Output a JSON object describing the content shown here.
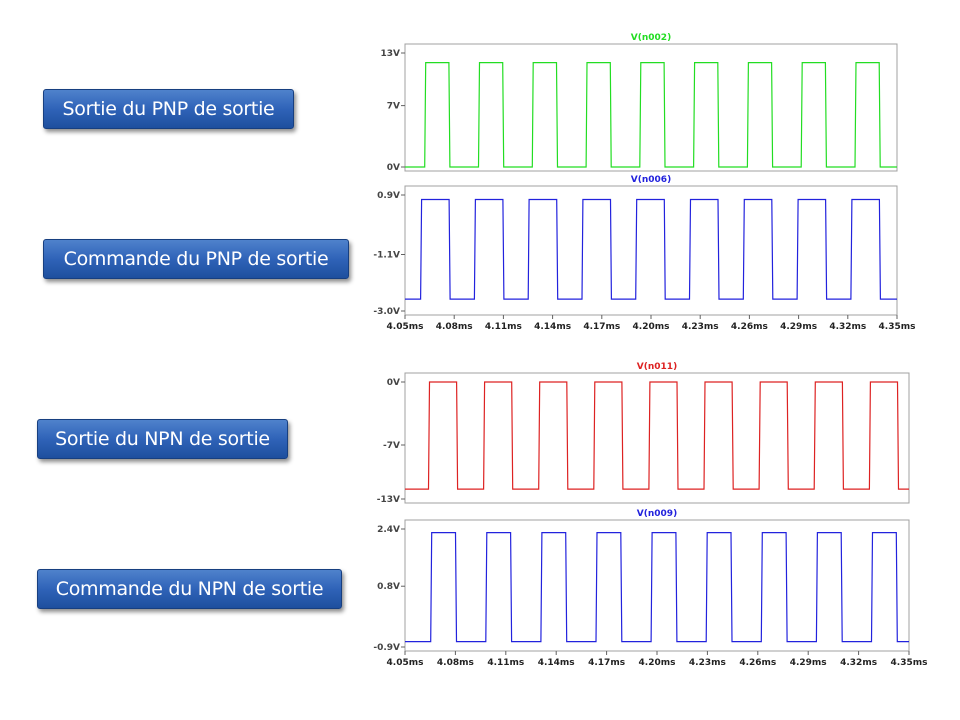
{
  "labels": [
    "Sortie du PNP de sortie",
    "Commande du PNP de sortie",
    "Sortie du NPN de sortie",
    "Commande du NPN de sortie"
  ],
  "chart_data": [
    {
      "type": "line",
      "title": "V(n002)",
      "color": "#22dd22",
      "yticks": [
        "13V",
        "7V",
        "0V"
      ],
      "ytick_values": [
        13,
        7,
        0
      ],
      "ylim": [
        0,
        13
      ],
      "xlim": [
        4.05,
        4.35
      ],
      "xticks": [],
      "waveform": {
        "high": 11.9,
        "low": 0,
        "period": 0.0328,
        "first_rise": 4.062,
        "duty": 0.45
      },
      "series": [
        {
          "values_desc": "square wave 0V to ~11.9V"
        }
      ]
    },
    {
      "type": "line",
      "title": "V(n006)",
      "color": "#2222dd",
      "yticks": [
        "0.9V",
        "-1.1V",
        "-3.0V"
      ],
      "ytick_values": [
        0.9,
        -1.1,
        -3.0
      ],
      "ylim": [
        -3.0,
        0.9
      ],
      "xlim": [
        4.05,
        4.35
      ],
      "xticks": [
        "4.05ms",
        "4.08ms",
        "4.11ms",
        "4.14ms",
        "4.17ms",
        "4.20ms",
        "4.23ms",
        "4.26ms",
        "4.29ms",
        "4.32ms",
        "4.35ms"
      ],
      "waveform": {
        "high": 0.75,
        "low": -2.6,
        "period": 0.0328,
        "first_rise": 4.0595,
        "duty": 0.53
      },
      "series": [
        {
          "values_desc": "square wave ~-2.6V to ~0.75V"
        }
      ]
    },
    {
      "type": "line",
      "title": "V(n011)",
      "color": "#dd2222",
      "yticks": [
        "0V",
        "-7V",
        "-13V"
      ],
      "ytick_values": [
        0,
        -7,
        -13
      ],
      "ylim": [
        -13,
        0
      ],
      "xlim": [
        4.05,
        4.35
      ],
      "xticks": [],
      "waveform": {
        "high": 0,
        "low": -11.9,
        "period": 0.0328,
        "first_rise": 4.064,
        "duty": 0.51
      },
      "series": [
        {
          "values_desc": "square wave ~-11.9V to 0V"
        }
      ]
    },
    {
      "type": "line",
      "title": "V(n009)",
      "color": "#2222dd",
      "yticks": [
        "2.4V",
        "0.8V",
        "-0.9V"
      ],
      "ytick_values": [
        2.4,
        0.8,
        -0.9
      ],
      "ylim": [
        -0.9,
        2.4
      ],
      "xlim": [
        4.05,
        4.35
      ],
      "xticks": [
        "4.05ms",
        "4.08ms",
        "4.11ms",
        "4.14ms",
        "4.17ms",
        "4.20ms",
        "4.23ms",
        "4.26ms",
        "4.29ms",
        "4.32ms",
        "4.35ms"
      ],
      "waveform": {
        "high": 2.3,
        "low": -0.75,
        "period": 0.0328,
        "first_rise": 4.0325,
        "duty": 0.45
      },
      "series": [
        {
          "values_desc": "square wave ~-0.75V to ~2.3V"
        }
      ]
    }
  ]
}
